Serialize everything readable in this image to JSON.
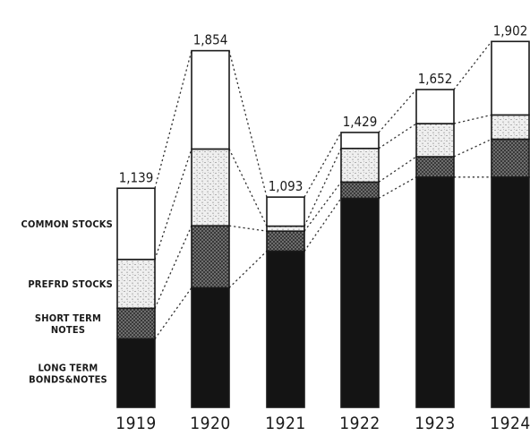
{
  "chart_data": {
    "type": "bar",
    "stacked": true,
    "categories": [
      "1919",
      "1920",
      "1921",
      "1922",
      "1923",
      "1924"
    ],
    "totals": [
      1139,
      1854,
      1093,
      1429,
      1652,
      1902
    ],
    "total_labels": [
      "1,139",
      "1,854",
      "1,093",
      "1,429",
      "1,652",
      "1,902"
    ],
    "series": [
      {
        "name": "LONG TERM BONDS & NOTES",
        "label_lines": [
          "LONG TERM",
          "BONDS&NOTES"
        ],
        "pattern": "solid-black",
        "values": [
          356,
          622,
          812,
          1087,
          1197,
          1197
        ]
      },
      {
        "name": "SHORT TERM NOTES",
        "label_lines": [
          "SHORT TERM",
          "NOTES"
        ],
        "pattern": "cross-hatch",
        "values": [
          159,
          322,
          104,
          84,
          106,
          197
        ]
      },
      {
        "name": "PREFRD STOCKS",
        "label_lines": [
          "PREFRD STOCKS"
        ],
        "pattern": "light-stipple",
        "values": [
          254,
          399,
          26,
          175,
          172,
          126
        ]
      },
      {
        "name": "COMMON STOCKS",
        "label_lines": [
          "COMMON STOCKS"
        ],
        "pattern": "white",
        "values": [
          370,
          511,
          151,
          83,
          177,
          382
        ]
      }
    ],
    "ylim": [
      0,
      1950
    ],
    "connectors": "dotted",
    "grid": false,
    "legend": "left of first bar",
    "colors": {
      "ink": "#1a1a1a",
      "paper": "#ffffff",
      "stipple_bg": "#eeeeee",
      "hatch_bg": "#8c8c8c"
    }
  }
}
